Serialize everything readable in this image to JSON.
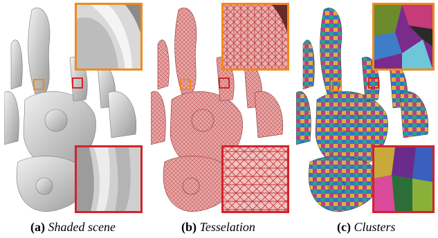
{
  "figure": {
    "panels": [
      {
        "id": "a",
        "tag": "(a)",
        "label": "Shaded scene",
        "mode": "shaded",
        "base_color": "#c9c9c9"
      },
      {
        "id": "b",
        "tag": "(b)",
        "label": "Tesselation",
        "mode": "tessellation",
        "base_color": "#e29a9a"
      },
      {
        "id": "c",
        "tag": "(c)",
        "label": "Clusters",
        "mode": "clusters",
        "base_color": "#6a8a3a"
      }
    ],
    "inset_colors": {
      "top": "#f08a1c",
      "bottom": "#d2232a"
    }
  }
}
